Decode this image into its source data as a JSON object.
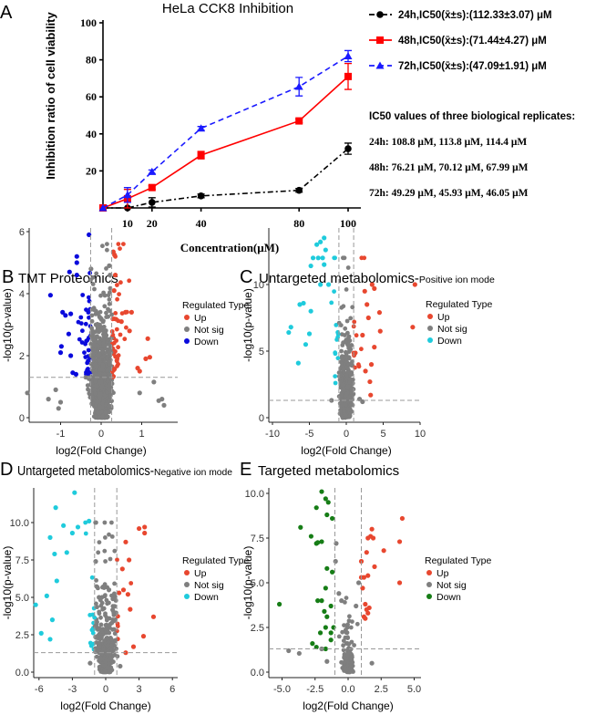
{
  "chart_data": [
    {
      "type": "line",
      "panel_label": "A",
      "title": "HeLa CCK8 Inhibition",
      "xlabel": "Concentration(μM)",
      "ylabel": "Inhibition ratio of cell viability",
      "xlim": [
        0,
        100
      ],
      "ylim": [
        0,
        100
      ],
      "x_ticks": [
        "10",
        "20",
        "40",
        "80",
        "100"
      ],
      "y_ticks": [
        "20",
        "40",
        "60",
        "80",
        "100"
      ],
      "series": [
        {
          "name": "24h,IC50(x̄±s):(112.33±3.07) μM",
          "color": "#000000",
          "marker": "circle",
          "line": "dash-dot",
          "x": [
            0,
            10,
            20,
            40,
            80,
            100
          ],
          "y": [
            0,
            -1,
            3,
            6.5,
            9.5,
            32
          ],
          "err": [
            0,
            0,
            2.5,
            1,
            1,
            3
          ]
        },
        {
          "name": "48h,IC50(x̄±s):(71.44±4.27) μM",
          "color": "#ff0000",
          "marker": "square",
          "line": "solid",
          "x": [
            0,
            10,
            20,
            40,
            80,
            100
          ],
          "y": [
            0,
            5,
            11,
            28.5,
            47,
            71
          ],
          "err": [
            0,
            5,
            1,
            2,
            1,
            7
          ]
        },
        {
          "name": "72h,IC50(x̄±s):(47.09±1.91) μM",
          "color": "#1a1aff",
          "marker": "triangle",
          "line": "dashed",
          "x": [
            0,
            10,
            20,
            40,
            80,
            100
          ],
          "y": [
            0,
            7,
            19.5,
            43,
            65.5,
            82
          ],
          "err": [
            0,
            4,
            1,
            1,
            5,
            3
          ]
        }
      ],
      "notes": {
        "heading": "IC50 values of three biological replicates:",
        "lines": [
          "24h: 108.8 μM, 113.8 μM, 114.4 μM",
          "48h: 76.21 μM, 70.12 μM, 67.99 μM",
          "72h: 49.29 μM, 45.93 μM, 46.05 μM"
        ]
      }
    },
    {
      "type": "scatter",
      "panel_label": "B",
      "title": "TMT Proteomics",
      "title_suffix": "",
      "xlabel": "log2(Fold Change)",
      "ylabel": "-log10(p-value)",
      "xlim": [
        -1.85,
        1.9
      ],
      "ylim": [
        0,
        6
      ],
      "x_ticks": [
        [
          -1,
          "-1"
        ],
        [
          0,
          "0"
        ],
        [
          1,
          "1"
        ]
      ],
      "y_ticks": [
        [
          0,
          "0"
        ],
        [
          2,
          "2"
        ],
        [
          4,
          "4"
        ],
        [
          6,
          "6"
        ]
      ],
      "thresholds": {
        "log2fc": [
          -0.26,
          0.26
        ],
        "pvalue": 1.3
      },
      "legend": {
        "title": "Regulated Type",
        "entries": [
          "Up",
          "Not sig",
          "Down"
        ]
      },
      "colors": {
        "up": "#e8472f",
        "not_sig": "#7f7f7f",
        "down": "#0a0adc"
      },
      "series": [
        {
          "name": "Up",
          "points": [
            [
              0.3,
              5.35
            ],
            [
              0.33,
              5.25
            ],
            [
              0.35,
              4.6
            ],
            [
              0.32,
              4.1
            ],
            [
              0.75,
              3.4
            ],
            [
              0.6,
              3.4
            ],
            [
              1.15,
              2.55
            ],
            [
              1.2,
              1.95
            ],
            [
              1.1,
              1.9
            ],
            [
              0.9,
              1.6
            ],
            [
              0.95,
              1.5
            ],
            [
              0.7,
              2.8
            ],
            [
              0.5,
              3.1
            ]
          ]
        },
        {
          "name": "Not sig",
          "points": [
            [
              -1.82,
              0.8
            ],
            [
              -1.3,
              0.6
            ],
            [
              -1.12,
              0.9
            ],
            [
              -1.05,
              0.3
            ],
            [
              -1.0,
              0.5
            ],
            [
              1.3,
              1.15
            ],
            [
              1.42,
              0.55
            ],
            [
              1.5,
              0.6
            ],
            [
              1.55,
              0.4
            ],
            [
              0.95,
              0.8
            ],
            [
              0.2,
              4.9
            ],
            [
              0.22,
              4.6
            ],
            [
              -0.25,
              4.8
            ]
          ]
        },
        {
          "name": "Down",
          "points": [
            [
              -1.25,
              3.95
            ],
            [
              -0.95,
              3.4
            ],
            [
              -0.88,
              3.3
            ],
            [
              -0.98,
              2.3
            ],
            [
              -1.0,
              2.1
            ],
            [
              -0.75,
              3.35
            ],
            [
              -0.6,
              5.2
            ],
            [
              -0.6,
              5.0
            ],
            [
              -0.78,
              4.7
            ],
            [
              -0.6,
              4.6
            ],
            [
              -0.3,
              5.9
            ],
            [
              -0.75,
              2.0
            ],
            [
              -0.7,
              1.45
            ],
            [
              -0.62,
              1.4
            ],
            [
              -0.8,
              2.7
            ]
          ]
        }
      ]
    },
    {
      "type": "scatter",
      "panel_label": "C",
      "title": "Untargeted metabolomics-",
      "title_suffix": "Positive ion mode",
      "xlabel": "log2(Fold Change)",
      "ylabel": "-log10(p-value)",
      "xlim": [
        -10.3,
        10.2
      ],
      "ylim": [
        0,
        14
      ],
      "x_ticks": [
        [
          -10,
          "-10"
        ],
        [
          -5,
          "-5"
        ],
        [
          0,
          "0"
        ],
        [
          5,
          "5"
        ],
        [
          10,
          "10"
        ]
      ],
      "y_ticks": [
        [
          0,
          "0"
        ],
        [
          5,
          "5"
        ],
        [
          10,
          "10"
        ]
      ],
      "thresholds": {
        "log2fc": [
          -1,
          1
        ],
        "pvalue": 1.3
      },
      "legend": {
        "title": "Regulated Type",
        "entries": [
          "Up",
          "Not sig",
          "Down"
        ]
      },
      "colors": {
        "up": "#e8472f",
        "not_sig": "#7f7f7f",
        "down": "#1fcbdc"
      },
      "series": [
        {
          "name": "Up",
          "points": [
            [
              9.3,
              10
            ],
            [
              9.0,
              6.8
            ],
            [
              3.5,
              10.0
            ],
            [
              3.8,
              9.7
            ],
            [
              4.5,
              7.9
            ],
            [
              4.6,
              6.5
            ],
            [
              3.8,
              5.3
            ],
            [
              2.5,
              9.5
            ],
            [
              3.0,
              7.5
            ],
            [
              2.2,
              6.2
            ],
            [
              3.2,
              2.7
            ],
            [
              3.3,
              1.7
            ],
            [
              2.6,
              3.5
            ],
            [
              3.4,
              4.0
            ],
            [
              2.8,
              8.5
            ]
          ]
        },
        {
          "name": "Not sig",
          "points": [
            [
              0.2,
              5.5
            ],
            [
              -0.5,
              4.4
            ],
            [
              1.8,
              1.4
            ],
            [
              2.2,
              1.2
            ],
            [
              -2.0,
              1.3
            ]
          ]
        },
        {
          "name": "Down",
          "points": [
            [
              -3.5,
              13.2
            ],
            [
              -3.0,
              13.5
            ],
            [
              -4.0,
              13.0
            ],
            [
              -2.8,
              12.6
            ],
            [
              -3.8,
              12.0
            ],
            [
              -4.5,
              12.0
            ],
            [
              -3.2,
              12.0
            ],
            [
              -4.8,
              11.4
            ],
            [
              -3.0,
              11.5
            ],
            [
              -3.5,
              10.0
            ],
            [
              -2.4,
              10.0
            ],
            [
              -7.5,
              6.8
            ],
            [
              -7.8,
              6.4
            ],
            [
              -6.5,
              4.1
            ],
            [
              -5.0,
              6.3
            ],
            [
              -5.5,
              5.5
            ],
            [
              -4.8,
              8.0
            ],
            [
              -6.3,
              8.5
            ],
            [
              -5.8,
              8.6
            ]
          ]
        }
      ]
    },
    {
      "type": "scatter",
      "panel_label": "D",
      "title": "Untargeted metabolomics-",
      "title_suffix": "Negative ion mode",
      "xlabel": "log2(Fold Change)",
      "ylabel": "-log10(p-value)",
      "xlim": [
        -6.5,
        6.5
      ],
      "ylim": [
        0,
        12.5
      ],
      "x_ticks": [
        [
          -6,
          "-6"
        ],
        [
          -3,
          "-3"
        ],
        [
          0,
          "0"
        ],
        [
          3,
          "3"
        ],
        [
          6,
          "6"
        ]
      ],
      "y_ticks": [
        [
          0,
          "0.0"
        ],
        [
          2.5,
          "2.5"
        ],
        [
          5,
          "5.0"
        ],
        [
          7.5,
          "7.5"
        ],
        [
          10,
          "10.0"
        ]
      ],
      "thresholds": {
        "log2fc": [
          -1,
          1
        ],
        "pvalue": 1.3
      },
      "legend": {
        "title": "Regulated Type",
        "entries": [
          "Up",
          "Not sig",
          "Down"
        ]
      },
      "colors": {
        "up": "#e8472f",
        "not_sig": "#7f7f7f",
        "down": "#1fcbdc"
      },
      "series": [
        {
          "name": "Up",
          "points": [
            [
              3.0,
              9.6
            ],
            [
              3.5,
              9.7
            ],
            [
              3.5,
              9.3
            ],
            [
              1.8,
              8.7
            ],
            [
              2.1,
              7.5
            ],
            [
              1.5,
              6.9
            ],
            [
              4.3,
              3.7
            ],
            [
              3.4,
              2.4
            ],
            [
              2.5,
              1.7
            ],
            [
              1.8,
              1.3
            ],
            [
              2.0,
              5.2
            ],
            [
              1.6,
              5.5
            ],
            [
              2.2,
              4.2
            ],
            [
              1.2,
              5.3
            ]
          ]
        },
        {
          "name": "Not sig",
          "points": [
            [
              -0.9,
              7.4
            ],
            [
              -0.6,
              5.0
            ],
            [
              0.8,
              4.4
            ],
            [
              -1.4,
              0.6
            ],
            [
              1.3,
              0.4
            ]
          ]
        },
        {
          "name": "Down",
          "points": [
            [
              -2.8,
              12.0
            ],
            [
              -4.5,
              11.0
            ],
            [
              -5.0,
              9.0
            ],
            [
              -3.8,
              9.8
            ],
            [
              -4.6,
              7.9
            ],
            [
              -6.3,
              4.5
            ],
            [
              -5.3,
              5.1
            ],
            [
              -4.8,
              3.5
            ],
            [
              -5.8,
              2.6
            ],
            [
              -5.0,
              2.2
            ],
            [
              -4.4,
              6.1
            ],
            [
              -1.5,
              10.1
            ],
            [
              -3.5,
              8.0
            ],
            [
              -3.0,
              9.3
            ],
            [
              -2.5,
              9.7
            ]
          ]
        }
      ]
    },
    {
      "type": "scatter",
      "panel_label": "E",
      "title": "Targeted metabolomics",
      "title_suffix": "",
      "xlabel": "log2(Fold Change)",
      "ylabel": "-log10(p-value)",
      "xlim": [
        -5.5,
        5.5
      ],
      "ylim": [
        0,
        10.3
      ],
      "x_ticks": [
        [
          -5,
          "-5.0"
        ],
        [
          -2.5,
          "-2.5"
        ],
        [
          0,
          "0.0"
        ],
        [
          2.5,
          "2.5"
        ],
        [
          5,
          "5.0"
        ]
      ],
      "y_ticks": [
        [
          0,
          "0.0"
        ],
        [
          2.5,
          "2.5"
        ],
        [
          5,
          "5.0"
        ],
        [
          7.5,
          "7.5"
        ],
        [
          10,
          "10.0"
        ]
      ],
      "thresholds": {
        "log2fc": [
          -1,
          1
        ],
        "pvalue": 1.3
      },
      "legend": {
        "title": "Regulated Type",
        "entries": [
          "Up",
          "Not sig",
          "Down"
        ]
      },
      "colors": {
        "up": "#e8472f",
        "not_sig": "#7f7f7f",
        "down": "#167d16"
      },
      "series": [
        {
          "name": "Up",
          "points": [
            [
              4.1,
              8.6
            ],
            [
              1.8,
              8.0
            ],
            [
              1.7,
              7.6
            ],
            [
              1.5,
              7.5
            ],
            [
              1.9,
              7.5
            ],
            [
              3.9,
              7.3
            ],
            [
              2.7,
              6.8
            ],
            [
              1.4,
              6.7
            ],
            [
              1.0,
              6.2
            ],
            [
              2.0,
              5.9
            ],
            [
              1.0,
              5.3
            ],
            [
              1.2,
              5.3
            ],
            [
              1.5,
              5.4
            ],
            [
              3.9,
              5.0
            ],
            [
              1.1,
              4.7
            ],
            [
              1.3,
              3.8
            ],
            [
              1.4,
              3.5
            ],
            [
              1.5,
              3.3
            ],
            [
              1.2,
              3.1
            ],
            [
              1.6,
              3.6
            ],
            [
              1.3,
              3.0
            ]
          ]
        },
        {
          "name": "Not sig",
          "points": [
            [
              -0.95,
              6.2
            ],
            [
              -0.9,
              7.2
            ],
            [
              0.8,
              5.0
            ],
            [
              -4.5,
              1.2
            ],
            [
              -3.7,
              1.05
            ],
            [
              -2.0,
              1.3
            ],
            [
              1.8,
              0.5
            ],
            [
              -1.6,
              0.6
            ],
            [
              -0.7,
              4.4
            ],
            [
              -0.5,
              4.0
            ],
            [
              0.6,
              3.7
            ]
          ]
        },
        {
          "name": "Down",
          "points": [
            [
              -2.0,
              10.1
            ],
            [
              -1.7,
              9.7
            ],
            [
              -2.4,
              9.2
            ],
            [
              -1.5,
              9.5
            ],
            [
              -1.6,
              8.8
            ],
            [
              -1.2,
              8.6
            ],
            [
              -3.6,
              8.1
            ],
            [
              -2.8,
              7.6
            ],
            [
              -2.4,
              7.2
            ],
            [
              -2.3,
              7.25
            ],
            [
              -2.0,
              7.3
            ],
            [
              -1.6,
              5.8
            ],
            [
              -1.2,
              5.6
            ],
            [
              -1.7,
              4.7
            ],
            [
              -2.3,
              4.0
            ],
            [
              -2.0,
              4.0
            ],
            [
              -1.8,
              3.4
            ],
            [
              -1.3,
              3.7
            ],
            [
              -5.2,
              3.8
            ],
            [
              -1.6,
              3.1
            ],
            [
              -2.1,
              2.2
            ],
            [
              -1.3,
              2.2
            ],
            [
              -1.1,
              2.5
            ],
            [
              -2.7,
              1.6
            ],
            [
              -2.4,
              1.4
            ],
            [
              -1.7,
              1.3
            ],
            [
              -1.3,
              1.8
            ],
            [
              -1.7,
              2.5
            ]
          ]
        }
      ]
    }
  ]
}
